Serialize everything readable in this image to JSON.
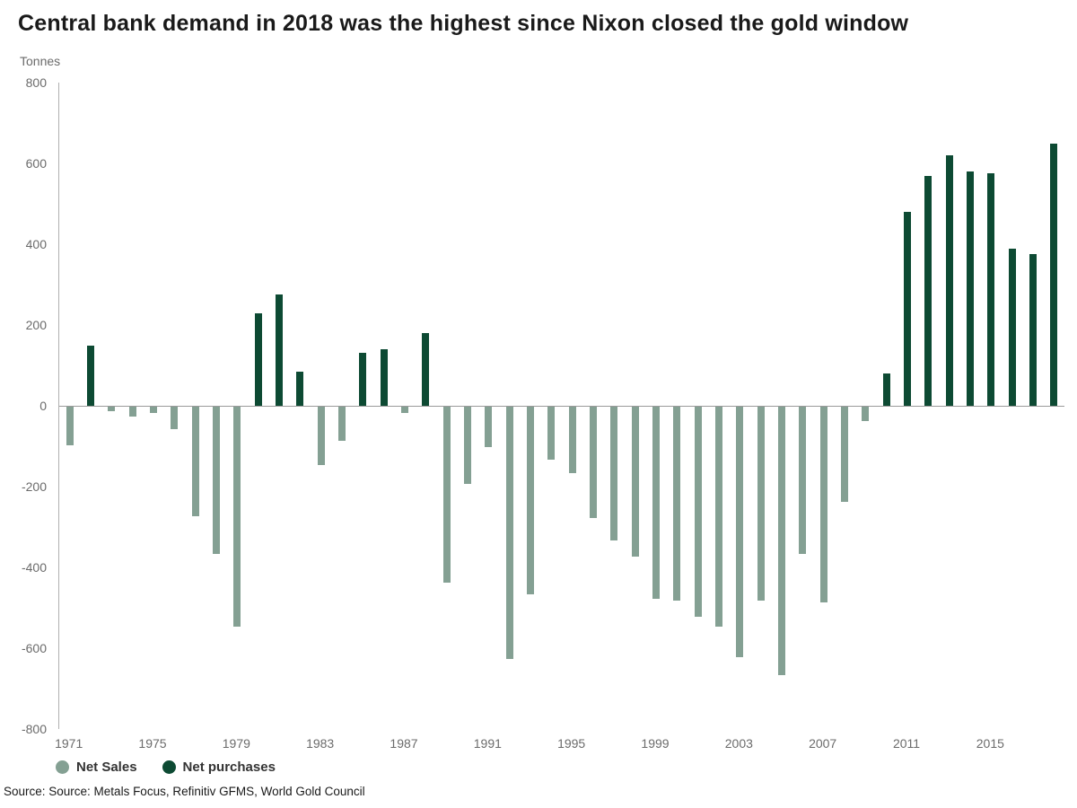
{
  "title": "Central bank demand in 2018 was the highest since Nixon closed the gold window",
  "source": "Source: Source: Metals Focus, Refinitiv GFMS, World Gold Council",
  "chart_data": {
    "type": "bar",
    "title": "Central bank demand in 2018 was the highest since Nixon closed the gold window",
    "ylabel": "Tonnes",
    "xlabel": "",
    "ylim": [
      -800,
      800
    ],
    "yticks": [
      800,
      600,
      400,
      200,
      0,
      -200,
      -400,
      -600,
      -800
    ],
    "xticks": [
      1971,
      1975,
      1979,
      1983,
      1987,
      1991,
      1995,
      1999,
      2003,
      2007,
      2011,
      2015
    ],
    "grid": false,
    "legend_position": "bottom-left",
    "years": [
      1971,
      1972,
      1973,
      1974,
      1975,
      1976,
      1977,
      1978,
      1979,
      1980,
      1981,
      1982,
      1983,
      1984,
      1985,
      1986,
      1987,
      1988,
      1989,
      1990,
      1991,
      1992,
      1993,
      1994,
      1995,
      1996,
      1997,
      1998,
      1999,
      2000,
      2001,
      2002,
      2003,
      2004,
      2005,
      2006,
      2007,
      2008,
      2009,
      2010,
      2011,
      2012,
      2013,
      2014,
      2015,
      2016,
      2017,
      2018
    ],
    "values": [
      -95,
      150,
      -10,
      -25,
      -15,
      -55,
      -270,
      -365,
      -545,
      230,
      275,
      85,
      -145,
      -85,
      132,
      140,
      -15,
      180,
      -435,
      -190,
      -100,
      -625,
      -465,
      -130,
      -165,
      -275,
      -330,
      -370,
      -475,
      -480,
      -520,
      -545,
      -620,
      -480,
      -665,
      -365,
      -485,
      -235,
      -35,
      80,
      480,
      570,
      620,
      580,
      575,
      390,
      375,
      650
    ],
    "series_rule": "negative values belong to Net Sales, positive values belong to Net purchases",
    "legend": [
      {
        "label": "Net Sales",
        "color": "#84a093"
      },
      {
        "label": "Net purchases",
        "color": "#0d4a33"
      }
    ]
  }
}
